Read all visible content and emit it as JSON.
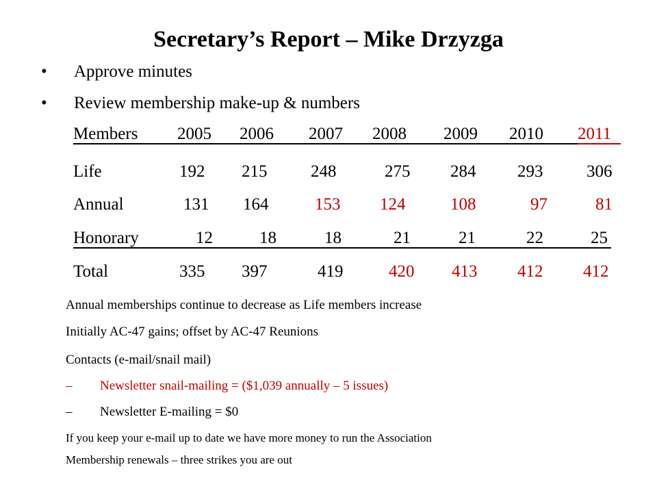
{
  "title": "Secretary’s Report – Mike Drzyzga",
  "bullets": [
    {
      "glyph": "•",
      "text": "Approve minutes"
    },
    {
      "glyph": "•",
      "text": "Review membership make-up & numbers"
    }
  ],
  "table": {
    "header": {
      "label": "Members",
      "years": [
        "2005",
        "2006",
        "2007",
        "2008",
        "2009",
        "2010",
        "2011"
      ]
    },
    "rows": [
      {
        "label": "Life",
        "values": [
          "192",
          "215",
          "248",
          "275",
          "284",
          "293",
          "306"
        ]
      },
      {
        "label": "Annual",
        "values": [
          "131",
          "164",
          "153",
          "124",
          "108",
          "97",
          "81"
        ]
      },
      {
        "label": "Honorary",
        "values": [
          "12",
          "18",
          "18",
          "21",
          "21",
          "22",
          "25"
        ]
      },
      {
        "label": "Total",
        "values": [
          "335",
          "397",
          "419",
          "420",
          "413",
          "412",
          "412"
        ]
      }
    ],
    "highlight_color": "#c00000"
  },
  "notes": {
    "annual_decrease": "Annual memberships continue to decrease as Life members increase",
    "ac47": "Initially AC-47 gains; offset by AC-47 Reunions",
    "contacts": "Contacts (e-mail/snail mail)",
    "dash": "–",
    "snail": "Newsletter snail-mailing = ($1,039 annually – 5 issues)",
    "email": "Newsletter E-mailing = $0",
    "keep_email": "If you keep your e-mail up to date we have more money to run the Association",
    "renewals": "Membership renewals – three strikes you are out"
  }
}
